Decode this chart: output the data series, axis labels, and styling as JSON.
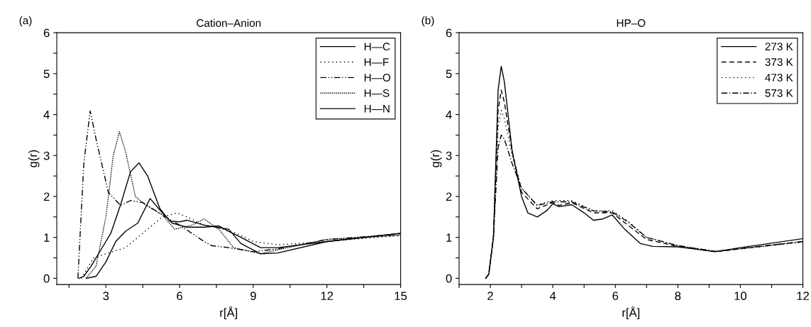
{
  "chart_data": [
    {
      "type": "line",
      "title": "Cation–Anion",
      "xlabel": "r[Å]",
      "ylabel": "g(r)",
      "annotations": [
        "(a)"
      ],
      "legend": "top right",
      "grid": false,
      "xlim": [
        1,
        15
      ],
      "xticks": [
        {
          "value": 1.5,
          "label": null
        },
        3,
        {
          "value": 4.5,
          "label": null
        },
        6,
        {
          "value": 7.5,
          "label": null
        },
        9,
        {
          "value": 10.5,
          "label": null
        },
        12,
        {
          "value": 13.5,
          "label": null
        },
        15
      ],
      "ylim": [
        -0.15,
        6
      ],
      "yticks": [
        0,
        {
          "value": 0.5,
          "label": null
        },
        1,
        {
          "value": 1.5,
          "label": null
        },
        2,
        {
          "value": 2.5,
          "label": null
        },
        3,
        {
          "value": 3.5,
          "label": null
        },
        4,
        {
          "value": 4.5,
          "label": null
        },
        5,
        {
          "value": 5.5,
          "label": null
        },
        6
      ],
      "series": [
        {
          "name": "H—C",
          "color": "#000000",
          "line_style": "solid",
          "x": [
            1.9,
            2.1,
            2.4,
            2.8,
            3.2,
            3.6,
            4.0,
            4.35,
            4.7,
            5.2,
            5.6,
            6.0,
            6.3,
            7.0,
            7.5,
            8.0,
            8.5,
            9.3,
            10,
            12,
            15
          ],
          "values": [
            0,
            0.05,
            0.3,
            0.7,
            1.1,
            1.8,
            2.6,
            2.82,
            2.5,
            1.7,
            1.4,
            1.38,
            1.42,
            1.3,
            1.25,
            1.2,
            0.85,
            0.6,
            0.62,
            0.9,
            1.1
          ]
        },
        {
          "name": "H—F",
          "color": "#000000",
          "line_style": "dotted",
          "x": [
            2.0,
            2.5,
            3.0,
            3.8,
            4.5,
            5.3,
            5.9,
            6.3,
            7.0,
            7.5,
            8.3,
            9.0,
            10,
            12,
            15
          ],
          "values": [
            0,
            0.5,
            0.6,
            0.75,
            1.1,
            1.5,
            1.6,
            1.5,
            1.3,
            1.25,
            1.1,
            0.9,
            0.82,
            0.9,
            1.05
          ]
        },
        {
          "name": "H—O",
          "color": "#000000",
          "line_style": "dashdotdot",
          "x": [
            1.86,
            2.1,
            2.36,
            2.6,
            3.1,
            3.6,
            4.0,
            4.5,
            5.3,
            6.0,
            6.5,
            7.0,
            7.3,
            8.0,
            9.0,
            10,
            12,
            15
          ],
          "values": [
            0,
            2.8,
            4.09,
            3.4,
            2.1,
            1.78,
            1.9,
            1.85,
            1.55,
            1.3,
            1.1,
            0.9,
            0.8,
            0.75,
            0.65,
            0.72,
            0.95,
            1.08
          ]
        },
        {
          "name": "H—S",
          "color": "#000000",
          "line_style": "fine",
          "x": [
            2.2,
            2.6,
            3.0,
            3.3,
            3.55,
            3.8,
            4.2,
            4.6,
            5.3,
            5.8,
            6.5,
            7.0,
            7.6,
            8.2,
            9.3,
            10,
            12,
            15
          ],
          "values": [
            0,
            0.3,
            1.5,
            3.0,
            3.58,
            3.1,
            2.0,
            1.8,
            1.55,
            1.2,
            1.3,
            1.45,
            1.2,
            0.75,
            0.6,
            0.7,
            0.95,
            1.05
          ]
        },
        {
          "name": "H—N",
          "color": "#000000",
          "line_style": "solid",
          "x": [
            2.2,
            2.6,
            3.0,
            3.4,
            3.8,
            4.3,
            4.8,
            5.3,
            5.7,
            6.3,
            7.0,
            7.6,
            8.0,
            8.5,
            9.3,
            10,
            12,
            15
          ],
          "values": [
            0,
            0.05,
            0.4,
            0.9,
            1.15,
            1.35,
            1.95,
            1.6,
            1.35,
            1.25,
            1.25,
            1.28,
            1.15,
            1.0,
            0.75,
            0.75,
            0.9,
            1.1
          ]
        }
      ]
    },
    {
      "type": "line",
      "title": "HP–O",
      "xlabel": "r[Å]",
      "ylabel": "g(r)",
      "annotations": [
        "(b)"
      ],
      "legend": "top right",
      "grid": false,
      "xlim": [
        1,
        12
      ],
      "xticks": [
        {
          "value": 1,
          "label": null
        },
        2,
        {
          "value": 3,
          "label": null
        },
        4,
        {
          "value": 5,
          "label": null
        },
        6,
        {
          "value": 7,
          "label": null
        },
        8,
        {
          "value": 9,
          "label": null
        },
        10,
        {
          "value": 11,
          "label": null
        },
        12
      ],
      "ylim": [
        -0.15,
        6
      ],
      "yticks": [
        0,
        {
          "value": 0.5,
          "label": null
        },
        1,
        {
          "value": 1.5,
          "label": null
        },
        2,
        {
          "value": 2.5,
          "label": null
        },
        3,
        {
          "value": 3.5,
          "label": null
        },
        4,
        {
          "value": 4.5,
          "label": null
        },
        5,
        {
          "value": 5.5,
          "label": null
        },
        6
      ],
      "series": [
        {
          "name": "273 K",
          "color": "#000000",
          "line_style": "solid",
          "x": [
            1.85,
            1.95,
            2.1,
            2.25,
            2.35,
            2.45,
            2.7,
            3.0,
            3.2,
            3.5,
            3.8,
            4.0,
            4.2,
            4.6,
            5.0,
            5.3,
            5.6,
            5.9,
            6.3,
            6.8,
            7.2,
            8.0,
            8.5,
            9.2,
            10,
            12
          ],
          "values": [
            0,
            0.1,
            1.0,
            4.6,
            5.18,
            4.8,
            3.1,
            2.0,
            1.6,
            1.5,
            1.65,
            1.82,
            1.75,
            1.8,
            1.6,
            1.42,
            1.45,
            1.55,
            1.2,
            0.85,
            0.78,
            0.77,
            0.72,
            0.65,
            0.75,
            0.97
          ]
        },
        {
          "name": "373 K",
          "color": "#000000",
          "line_style": "dashed",
          "x": [
            1.85,
            1.95,
            2.1,
            2.25,
            2.35,
            2.45,
            2.7,
            3.0,
            3.5,
            4.0,
            4.2,
            4.6,
            5.3,
            5.9,
            6.4,
            7.0,
            8.0,
            9.2,
            10,
            12
          ],
          "values": [
            0,
            0.1,
            1.0,
            4.1,
            4.6,
            4.3,
            3.1,
            2.1,
            1.7,
            1.85,
            1.78,
            1.85,
            1.6,
            1.6,
            1.3,
            0.95,
            0.78,
            0.65,
            0.72,
            0.9
          ]
        },
        {
          "name": "473 K",
          "color": "#000000",
          "line_style": "dotted",
          "x": [
            1.85,
            1.95,
            2.1,
            2.25,
            2.35,
            2.45,
            2.7,
            3.0,
            3.5,
            4.0,
            4.6,
            5.3,
            5.9,
            6.4,
            7.0,
            8.0,
            9.2,
            12
          ],
          "values": [
            0,
            0.1,
            1.0,
            3.7,
            4.1,
            3.9,
            3.0,
            2.2,
            1.8,
            1.9,
            1.9,
            1.65,
            1.65,
            1.4,
            1.0,
            0.8,
            0.66,
            0.88
          ]
        },
        {
          "name": "573 K",
          "color": "#000000",
          "line_style": "dashdot",
          "x": [
            1.85,
            1.95,
            2.1,
            2.25,
            2.35,
            2.45,
            2.7,
            3.0,
            3.5,
            4.0,
            4.6,
            5.3,
            5.9,
            6.4,
            7.0,
            8.0,
            9.2,
            12
          ],
          "values": [
            0,
            0.1,
            1.0,
            3.2,
            3.5,
            3.4,
            2.8,
            2.2,
            1.78,
            1.87,
            1.87,
            1.65,
            1.62,
            1.38,
            1.0,
            0.8,
            0.66,
            0.9
          ]
        }
      ]
    }
  ]
}
